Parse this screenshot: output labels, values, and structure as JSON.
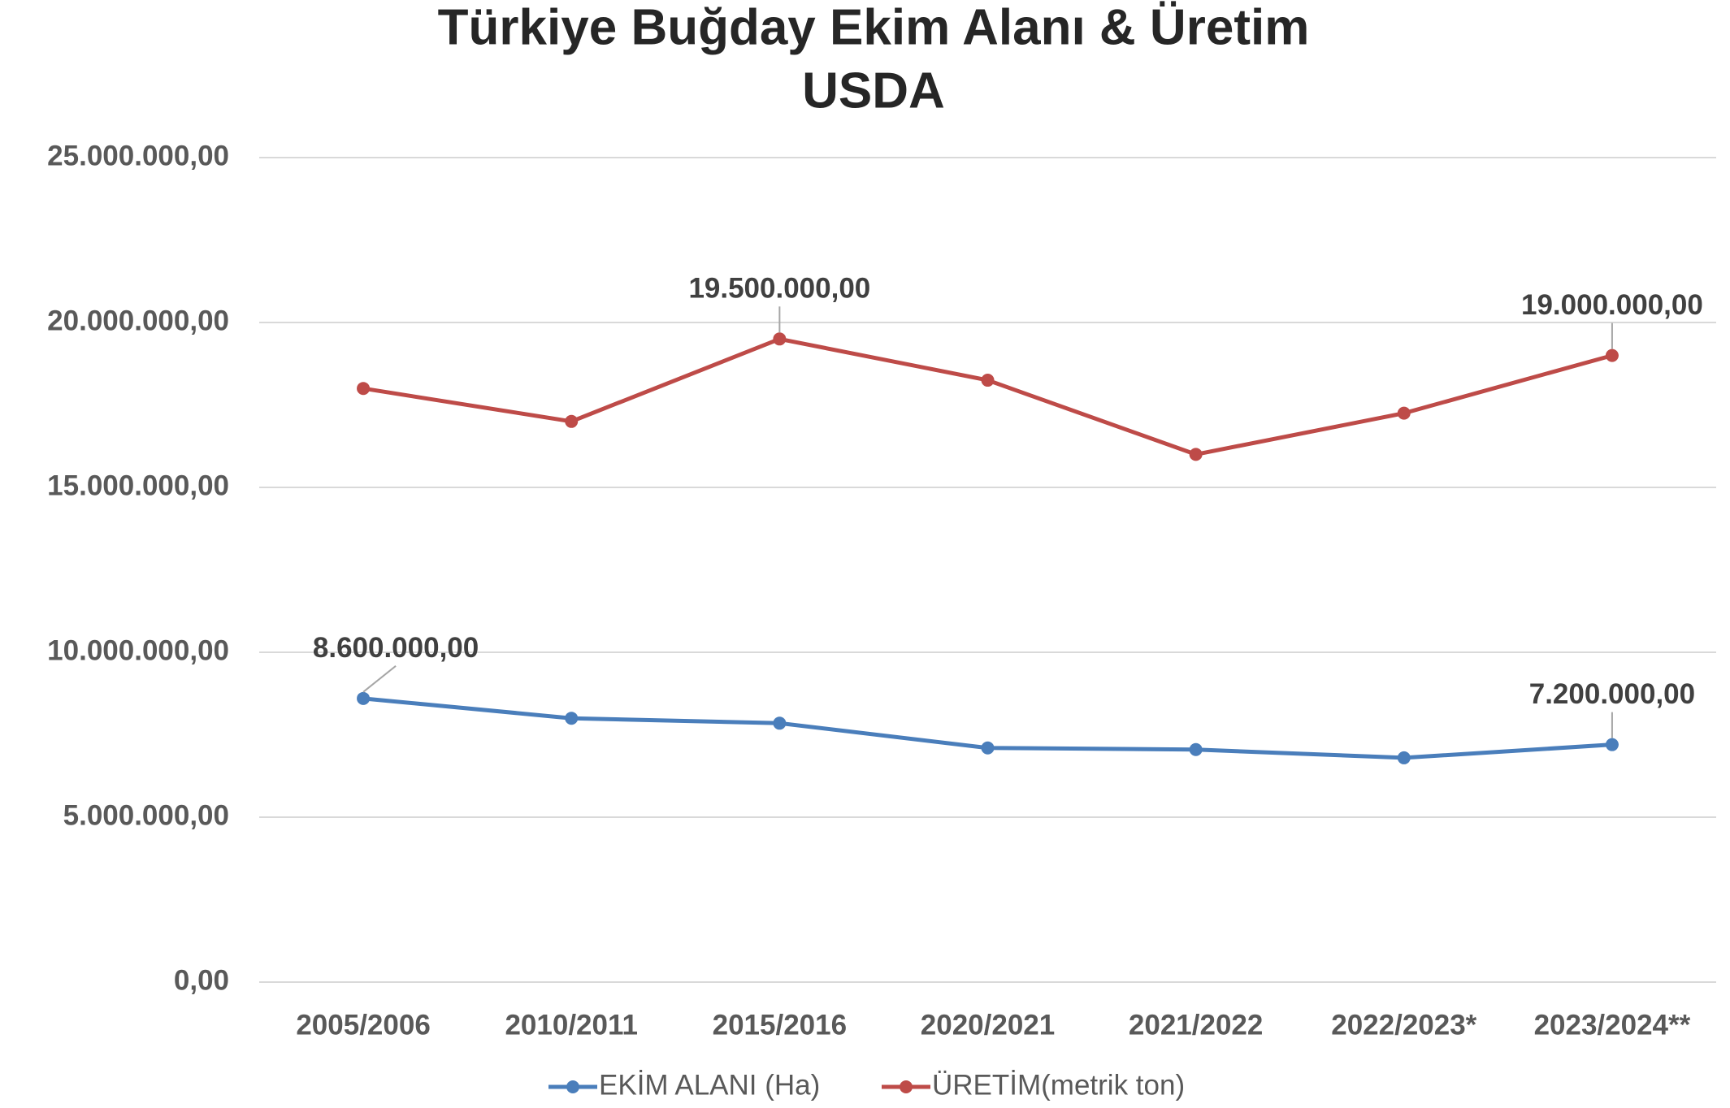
{
  "chart_data": {
    "type": "line",
    "title": "Türkiye Buğday Ekim Alanı & Üretim",
    "subtitle": "USDA",
    "categories": [
      "2005/2006",
      "2010/2011",
      "2015/2016",
      "2020/2021",
      "2021/2022",
      "2022/2023*",
      "2023/2024**"
    ],
    "series": [
      {
        "name": "EKİM ALANI (Ha)",
        "color": "#4a7ebb",
        "values": [
          8600000,
          8000000,
          7850000,
          7100000,
          7050000,
          6800000,
          7200000
        ],
        "value_labels": [
          "8.600.000,00",
          null,
          null,
          null,
          null,
          null,
          "7.200.000,00"
        ]
      },
      {
        "name": "ÜRETİM(metrik ton)",
        "color": "#be4b48",
        "values": [
          18000000,
          17000000,
          19500000,
          18250000,
          16000000,
          17250000,
          19000000
        ],
        "value_labels": [
          null,
          null,
          "19.500.000,00",
          null,
          null,
          null,
          "19.000.000,00"
        ]
      }
    ],
    "ylim": [
      0,
      25000000
    ],
    "yticks": [
      {
        "value": 0,
        "label": "0,00"
      },
      {
        "value": 5000000,
        "label": "5.000.000,00"
      },
      {
        "value": 10000000,
        "label": "10.000.000,00"
      },
      {
        "value": 15000000,
        "label": "15.000.000,00"
      },
      {
        "value": 20000000,
        "label": "20.000.000,00"
      },
      {
        "value": 25000000,
        "label": "25.000.000,00"
      }
    ],
    "grid": true
  }
}
